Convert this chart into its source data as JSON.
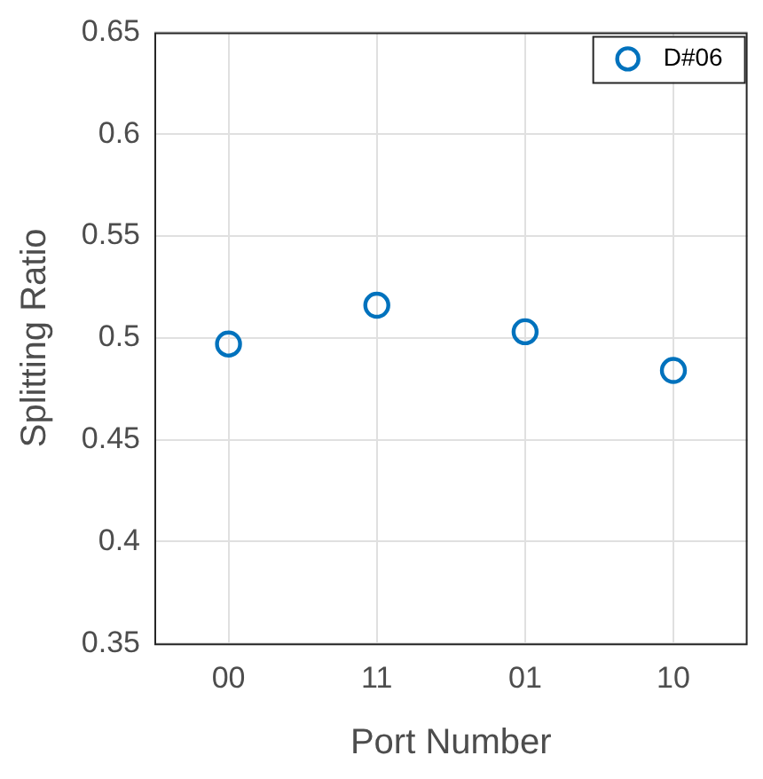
{
  "chart_data": {
    "type": "scatter",
    "xlabel": "Port Number",
    "ylabel": "Splitting Ratio",
    "categories": [
      "00",
      "11",
      "01",
      "10"
    ],
    "series": [
      {
        "name": "D#06",
        "color": "#0072bd",
        "values": [
          0.497,
          0.516,
          0.503,
          0.484
        ]
      }
    ],
    "ylim": [
      0.35,
      0.65
    ],
    "yticks": [
      0.35,
      0.4,
      0.45,
      0.5,
      0.55,
      0.6,
      0.65
    ],
    "grid": true,
    "legend": "top right",
    "marker": "circle"
  }
}
